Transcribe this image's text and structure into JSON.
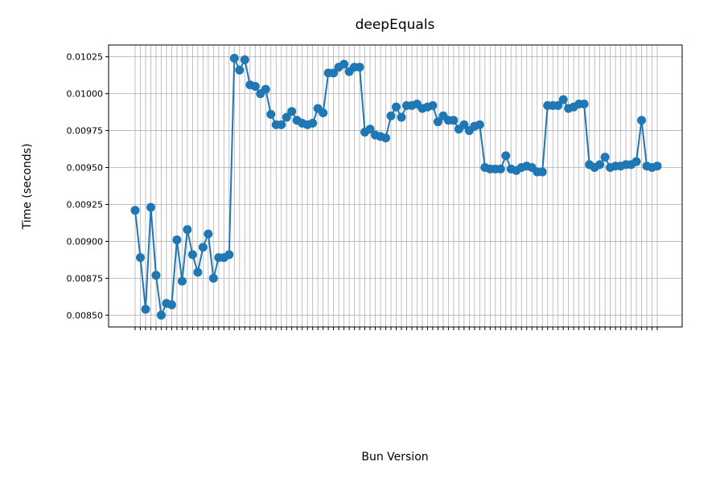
{
  "chart_data": {
    "type": "line",
    "title": "deepEquals",
    "x_label": "Bun Version",
    "y_label": "Time (seconds)",
    "categories": [
      null,
      null,
      null,
      null,
      null,
      null,
      null,
      null,
      null,
      null,
      null,
      null,
      null,
      null,
      null,
      null,
      null,
      null,
      null,
      null,
      null,
      null,
      null,
      null,
      null,
      null,
      null,
      null,
      null,
      null,
      null,
      null,
      null,
      null,
      null,
      null,
      null,
      null,
      null,
      null,
      null,
      null,
      null,
      null,
      null,
      null,
      null,
      null,
      null,
      null,
      null,
      null,
      null,
      null,
      null,
      null,
      null,
      null,
      null,
      null,
      null,
      null,
      null,
      null,
      null,
      null,
      null,
      null,
      null,
      null,
      null,
      null,
      null,
      null,
      null,
      null,
      null,
      null,
      null,
      null,
      null,
      null,
      null,
      null,
      null,
      null,
      null,
      null,
      null,
      null,
      null,
      null,
      null,
      null,
      null,
      null,
      null,
      null,
      null,
      null,
      null
    ],
    "series": [
      {
        "name": "deepEquals",
        "color": "#1f77b4",
        "values": [
          0.00921,
          0.00889,
          0.00854,
          0.00923,
          0.00877,
          0.0085,
          0.00858,
          0.00857,
          0.00901,
          0.00873,
          0.00908,
          0.00891,
          0.00879,
          0.00896,
          0.00905,
          0.00875,
          0.00889,
          0.00889,
          0.00891,
          0.01024,
          0.01016,
          0.01023,
          0.01006,
          0.01005,
          0.01,
          0.01003,
          0.00986,
          0.00979,
          0.00979,
          0.00984,
          0.00988,
          0.00982,
          0.0098,
          0.00979,
          0.0098,
          0.0099,
          0.00987,
          0.01014,
          0.01014,
          0.01018,
          0.0102,
          0.01015,
          0.01018,
          0.01018,
          0.00974,
          0.00976,
          0.00972,
          0.00971,
          0.0097,
          0.00985,
          0.00991,
          0.00984,
          0.00992,
          0.00992,
          0.00993,
          0.0099,
          0.00991,
          0.00992,
          0.00981,
          0.00985,
          0.00982,
          0.00982,
          0.00976,
          0.00979,
          0.00975,
          0.00978,
          0.00979,
          0.0095,
          0.00949,
          0.00949,
          0.00949,
          0.00958,
          0.00949,
          0.00948,
          0.0095,
          0.00951,
          0.0095,
          0.00947,
          0.00947,
          0.00992,
          0.00992,
          0.00992,
          0.00996,
          0.0099,
          0.00991,
          0.00993,
          0.00993,
          0.00952,
          0.0095,
          0.00952,
          0.00957,
          0.0095,
          0.00951,
          0.00951,
          0.00952,
          0.00952,
          0.00954,
          0.00982,
          0.00951,
          0.0095,
          0.00951
        ]
      }
    ],
    "ylim": [
      0.00842,
      0.01033
    ],
    "yticks": [
      {
        "value": 0.0085,
        "label": "0.00850"
      },
      0.00875,
      {
        "value": 0.009,
        "label": "0.00900"
      },
      0.00925,
      {
        "value": 0.0095,
        "label": "0.00950"
      },
      0.00975,
      {
        "value": 0.01,
        "label": "0.01000"
      },
      0.01025
    ],
    "grid": true
  }
}
